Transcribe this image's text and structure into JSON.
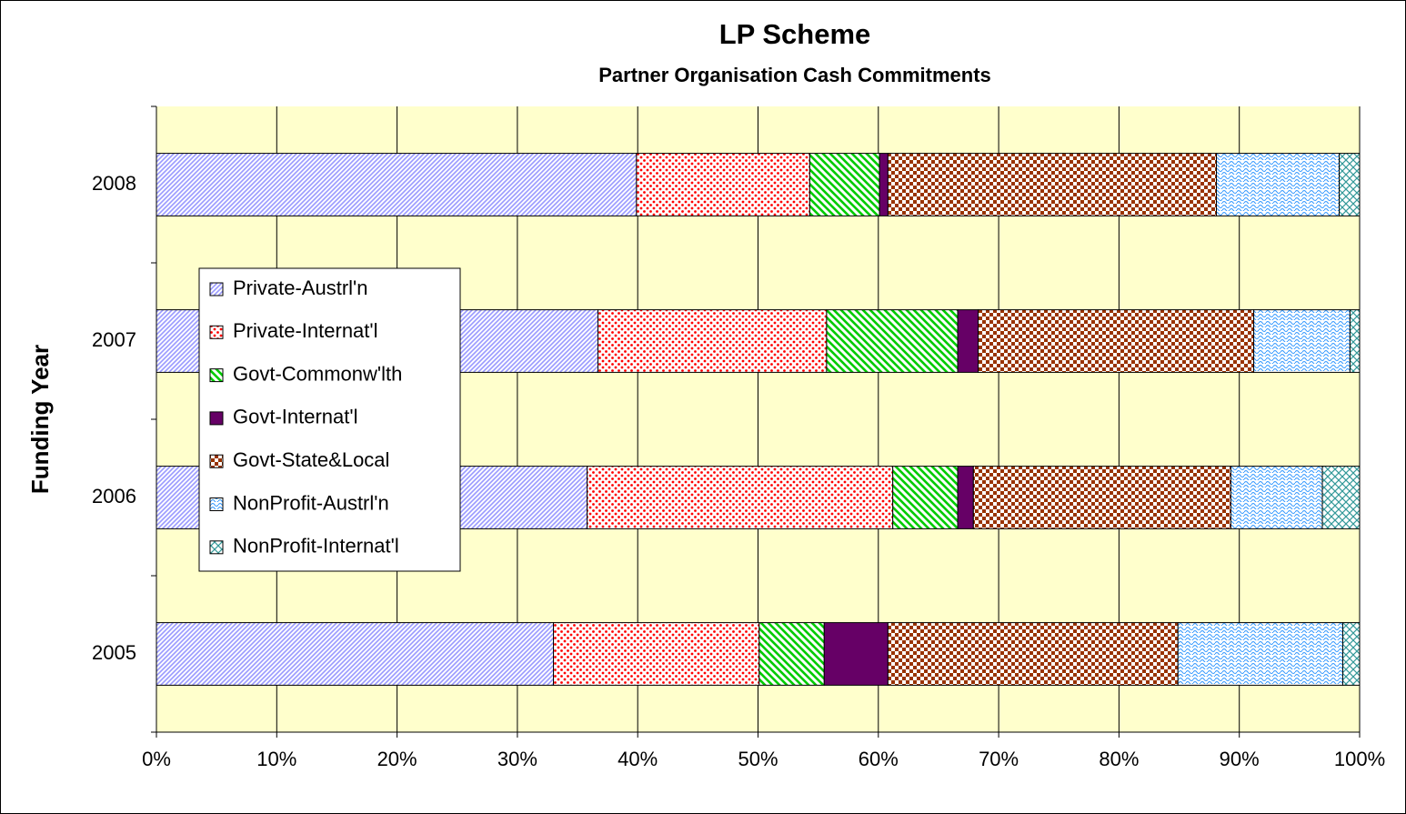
{
  "chart_data": {
    "type": "stacked-barh",
    "title": "LP Scheme",
    "subtitle": "Partner Organisation Cash Commitments",
    "y_label": "Funding Year",
    "categories": [
      "2005",
      "2006",
      "2007",
      "2008"
    ],
    "series": [
      {
        "name": "Private-Austrl'n",
        "color": "#9999ff",
        "pattern": "diagonal-up",
        "values": [
          33.0,
          35.8,
          36.7,
          39.9
        ]
      },
      {
        "name": "Private-Internat'l",
        "color": "#ff0000",
        "pattern": "dots",
        "values": [
          17.1,
          25.4,
          19.0,
          14.4
        ]
      },
      {
        "name": "Govt-Commonw'lth",
        "color": "#00cc00",
        "pattern": "diagonal-down",
        "values": [
          5.4,
          5.4,
          10.9,
          5.8
        ]
      },
      {
        "name": "Govt-Internat'l",
        "color": "#660066",
        "pattern": "solid",
        "values": [
          5.3,
          1.3,
          1.7,
          0.7
        ]
      },
      {
        "name": "Govt-State&Local",
        "color": "#993300",
        "pattern": "checker",
        "values": [
          24.1,
          21.4,
          22.9,
          27.3
        ]
      },
      {
        "name": "NonProfit-Austrl'n",
        "color": "#3399ff",
        "pattern": "wave",
        "values": [
          13.7,
          7.6,
          8.0,
          10.2
        ]
      },
      {
        "name": "NonProfit-Internat'l",
        "color": "#339999",
        "pattern": "crosshatch",
        "values": [
          1.4,
          3.1,
          0.8,
          1.7
        ]
      }
    ],
    "xlim": [
      0,
      100
    ],
    "xticks": [
      {
        "value": 0,
        "label": "0%"
      },
      {
        "value": 10,
        "label": "10%"
      },
      {
        "value": 20,
        "label": "20%"
      },
      {
        "value": 30,
        "label": "30%"
      },
      {
        "value": 40,
        "label": "40%"
      },
      {
        "value": 50,
        "label": "50%"
      },
      {
        "value": 60,
        "label": "60%"
      },
      {
        "value": 70,
        "label": "70%"
      },
      {
        "value": 80,
        "label": "80%"
      },
      {
        "value": 90,
        "label": "90%"
      },
      {
        "value": 100,
        "label": "100%"
      }
    ],
    "grid": true,
    "plot_background": "#ffffcc"
  }
}
